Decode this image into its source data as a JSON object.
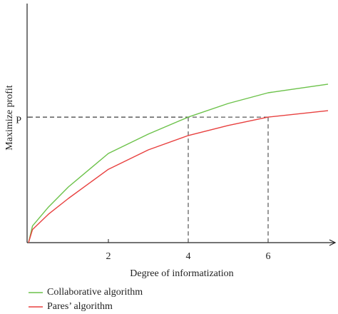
{
  "chart_data": {
    "type": "line",
    "x_label": "Degree of informatization",
    "y_label": "Maximize profit",
    "x": [
      0,
      0.1,
      0.5,
      1,
      2,
      3,
      4,
      5,
      6,
      7.5
    ],
    "series": [
      {
        "name": "Collaborative algorithm",
        "color": "#6cc24a",
        "values": [
          0,
          0.7,
          1.49,
          2.33,
          3.73,
          4.54,
          5.25,
          5.82,
          6.27,
          6.63
        ]
      },
      {
        "name": "Pares’ algorithm",
        "color": "#e8403f",
        "values": [
          0,
          0.55,
          1.19,
          1.85,
          3.07,
          3.88,
          4.48,
          4.9,
          5.25,
          5.52
        ]
      }
    ],
    "xlim": [
      0,
      7.5
    ],
    "ylim": [
      0,
      10
    ],
    "xticks": [
      2,
      4,
      6
    ],
    "yticks": [
      {
        "value": 5.25,
        "label": "P"
      }
    ],
    "guides": [
      {
        "x": 4,
        "y": 5.25
      },
      {
        "x": 6,
        "y": 5.25
      }
    ],
    "grid": false,
    "legend": "bottom-left"
  }
}
